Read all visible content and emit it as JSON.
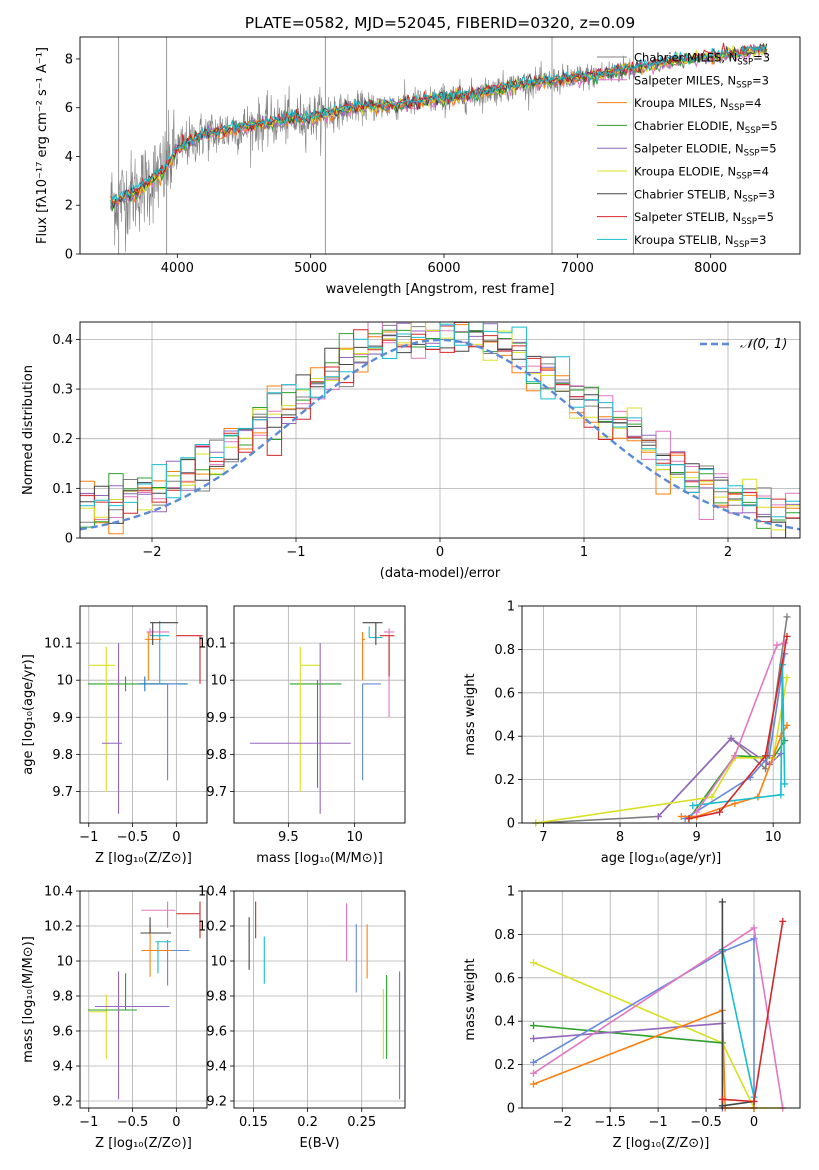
{
  "figure": {
    "title": "PLATE=0582, MJD=52045, FIBERID=0320, z=0.09"
  },
  "model_colors": [
    "#7f7f7f",
    "#e377c2",
    "#ff7f0e",
    "#2ca02c",
    "#9467bd",
    "#d9e021",
    "#444444",
    "#d62728",
    "#17becf"
  ],
  "chart_data": [
    {
      "id": "spectrum",
      "type": "line",
      "xlabel": "wavelength [Angstrom, rest frame]",
      "ylabel": "Flux [fλ10⁻¹⁷ erg cm⁻² s⁻¹ A⁻¹]",
      "xlim": [
        3270,
        8670
      ],
      "ylim": [
        0,
        8.9
      ],
      "xticks": [
        4000,
        5000,
        6000,
        7000,
        8000
      ],
      "yticks": [
        0,
        2,
        4,
        6,
        8
      ],
      "legend_position": "top-right",
      "series": [
        {
          "name": "Chabrier MILES, N",
          "sub": "SSP",
          "n": "=3",
          "color": "#7f7f7f"
        },
        {
          "name": "Salpeter MILES, N",
          "sub": "SSP",
          "n": "=3",
          "color": "#e377c2"
        },
        {
          "name": "Kroupa MILES, N",
          "sub": "SSP",
          "n": "=4",
          "color": "#ff7f0e"
        },
        {
          "name": "Chabrier ELODIE, N",
          "sub": "SSP",
          "n": "=5",
          "color": "#2ca02c"
        },
        {
          "name": "Salpeter ELODIE, N",
          "sub": "SSP",
          "n": "=5",
          "color": "#9467bd"
        },
        {
          "name": "Kroupa ELODIE, N",
          "sub": "SSP",
          "n": "=4",
          "color": "#d9e021"
        },
        {
          "name": "Chabrier STELIB, N",
          "sub": "SSP",
          "n": "=3",
          "color": "#444444"
        },
        {
          "name": "Salpeter STELIB, N",
          "sub": "SSP",
          "n": "=5",
          "color": "#d62728"
        },
        {
          "name": "Kroupa STELIB, N",
          "sub": "SSP",
          "n": "=3",
          "color": "#17becf"
        }
      ],
      "continuum": {
        "x": [
          3500,
          3700,
          3900,
          4000,
          4200,
          4500,
          4800,
          5000,
          5300,
          5600,
          5900,
          6200,
          6500,
          6800,
          7100,
          7400,
          7700,
          8000,
          8300,
          8430
        ],
        "y": [
          2.1,
          2.6,
          3.4,
          4.3,
          4.9,
          5.2,
          5.5,
          5.6,
          6.0,
          6.1,
          6.3,
          6.5,
          6.9,
          7.1,
          7.3,
          7.6,
          7.9,
          8.1,
          8.3,
          8.4
        ]
      },
      "data_spectrum": {
        "x_range": [
          3500,
          7400
        ],
        "spikes_at": [
          3560,
          3920,
          5110,
          6810,
          7420
        ]
      }
    },
    {
      "id": "residuals",
      "type": "line",
      "xlabel": "(data-model)/error",
      "ylabel": "Normed distribution",
      "xlim": [
        -2.5,
        2.5
      ],
      "ylim": [
        0,
        0.435
      ],
      "xticks": [
        -2,
        -1,
        0,
        1,
        2
      ],
      "yticks": [
        0.0,
        0.1,
        0.2,
        0.3,
        0.4
      ],
      "legend_position": "top-right",
      "reference": {
        "name": "𝒩(0, 1)",
        "mu": 0,
        "sigma": 1,
        "color": "#5b8bd6"
      },
      "bins": 50
    },
    {
      "id": "z-age",
      "type": "scatter",
      "xlabel": "Z [log₁₀(Z/Z⊙)]",
      "ylabel": "age  [log₁₀(age/yr)]",
      "xlim": [
        -1.1,
        0.35
      ],
      "ylim": [
        9.615,
        10.2
      ],
      "xticks": [
        -1.0,
        -0.5,
        0.0
      ],
      "yticks": [
        9.7,
        9.8,
        9.9,
        10.0,
        10.1
      ],
      "points": [
        {
          "x": -0.58,
          "xerr": [
            0.43,
            0.51
          ],
          "y": 9.99,
          "yerr": [
            0.02,
            0.02
          ],
          "color": "#2ca02c"
        },
        {
          "x": -0.8,
          "xerr": [
            0.2,
            0.1
          ],
          "y": 10.04,
          "yerr": [
            0.34,
            0.05
          ],
          "color": "#d9e021"
        },
        {
          "x": -0.66,
          "xerr": [
            0.19,
            0.04
          ],
          "y": 9.83,
          "yerr": [
            0.19,
            0.27
          ],
          "color": "#9467bd"
        },
        {
          "x": -0.36,
          "xerr": [
            0.07,
            0.49
          ],
          "y": 9.99,
          "yerr": [
            0.02,
            0.02
          ],
          "color": "#1f77b4"
        },
        {
          "x": -0.1,
          "xerr": [
            0.01,
            0.12
          ],
          "y": 9.99,
          "yerr": [
            0.26,
            0.0
          ],
          "color": "#6688dd"
        },
        {
          "x": -0.32,
          "xerr": [
            0.04,
            0.15
          ],
          "y": 10.11,
          "yerr": [
            0.11,
            0.02
          ],
          "color": "#ff7f0e"
        },
        {
          "x": -0.19,
          "xerr": [
            0.11,
            0.11
          ],
          "y": 10.12,
          "yerr": [
            0.13,
            0.04
          ],
          "color": "#17becf"
        },
        {
          "x": -0.3,
          "xerr": [
            0.04,
            0.22
          ],
          "y": 10.13,
          "yerr": [
            0.01,
            0.01
          ],
          "color": "#e377c2"
        },
        {
          "x": -0.27,
          "xerr": [
            0.03,
            0.29
          ],
          "y": 10.155,
          "yerr": [
            0.06,
            0.0
          ],
          "color": "#444444"
        },
        {
          "x": 0.27,
          "xerr": [
            0.27,
            0.03
          ],
          "y": 10.12,
          "yerr": [
            0.13,
            0.0
          ],
          "color": "#d62728"
        }
      ]
    },
    {
      "id": "mass-age",
      "type": "scatter",
      "xlabel": "mass [log₁₀(M/M⊙)]",
      "ylabel": "",
      "xlim": [
        9.09,
        10.38
      ],
      "ylim": [
        9.615,
        10.2
      ],
      "xticks": [
        9.5,
        10.0
      ],
      "yticks": [
        9.7,
        9.8,
        9.9,
        10.0,
        10.1
      ],
      "points": [
        {
          "x": 9.72,
          "xerr": [
            0.21,
            0.18
          ],
          "y": 9.99,
          "yerr": [
            0.28,
            0.01
          ],
          "color": "#2ca02c"
        },
        {
          "x": 9.59,
          "xerr": [
            0.0,
            0.15
          ],
          "y": 10.04,
          "yerr": [
            0.34,
            0.05
          ],
          "color": "#d9e021"
        },
        {
          "x": 9.74,
          "xerr": [
            0.53,
            0.23
          ],
          "y": 9.83,
          "yerr": [
            0.19,
            0.27
          ],
          "color": "#9467bd"
        },
        {
          "x": 10.06,
          "xerr": [
            0.0,
            0.14
          ],
          "y": 9.99,
          "yerr": [
            0.26,
            0.0
          ],
          "color": "#6688dd"
        },
        {
          "x": 10.06,
          "xerr": [
            0.0,
            0.02
          ],
          "y": 10.11,
          "yerr": [
            0.11,
            0.02
          ],
          "color": "#ff7f0e"
        },
        {
          "x": 10.11,
          "xerr": [
            0.0,
            0.1
          ],
          "y": 10.115,
          "yerr": [
            0.0,
            0.03
          ],
          "color": "#17becf"
        },
        {
          "x": 10.26,
          "xerr": [
            0.04,
            0.04
          ],
          "y": 10.13,
          "yerr": [
            0.23,
            0.01
          ],
          "color": "#e377c2"
        },
        {
          "x": 10.16,
          "xerr": [
            0.1,
            0.05
          ],
          "y": 10.155,
          "yerr": [
            0.06,
            0.0
          ],
          "color": "#444444"
        },
        {
          "x": 10.26,
          "xerr": [
            0.07,
            0.04
          ],
          "y": 10.12,
          "yerr": [
            0.11,
            0.0
          ],
          "color": "#d62728"
        }
      ]
    },
    {
      "id": "age-weight",
      "type": "line",
      "xlabel": "age  [log₁₀(age/yr)]",
      "ylabel": "mass weight",
      "xlim": [
        6.72,
        10.35
      ],
      "ylim": [
        0,
        1.0
      ],
      "xticks": [
        7,
        8,
        9,
        10
      ],
      "yticks": [
        0.0,
        0.2,
        0.4,
        0.6,
        0.8,
        1.0
      ],
      "series": [
        {
          "color": "#7f7f7f",
          "x": [
            6.9,
            8.5,
            9.45,
            9.9,
            10.18
          ],
          "y": [
            0.0,
            0.03,
            0.39,
            0.25,
            0.95
          ]
        },
        {
          "color": "#2ca02c",
          "x": [
            8.9,
            9.5,
            10.0,
            10.15
          ],
          "y": [
            0.02,
            0.31,
            0.3,
            0.38
          ]
        },
        {
          "color": "#9467bd",
          "x": [
            8.5,
            9.45,
            9.95,
            10.1
          ],
          "y": [
            0.03,
            0.39,
            0.27,
            0.32
          ]
        },
        {
          "color": "#d9e021",
          "x": [
            6.9,
            9.2,
            9.5,
            10.0,
            10.18
          ],
          "y": [
            0.0,
            0.12,
            0.3,
            0.3,
            0.67
          ]
        },
        {
          "color": "#6688dd",
          "x": [
            8.85,
            9.7,
            9.95,
            10.15
          ],
          "y": [
            0.02,
            0.21,
            0.31,
            0.78
          ]
        },
        {
          "color": "#ff7f0e",
          "x": [
            8.8,
            9.0,
            9.5,
            9.8,
            10.1,
            10.18
          ],
          "y": [
            0.03,
            0.03,
            0.09,
            0.12,
            0.4,
            0.45
          ]
        },
        {
          "color": "#17becf",
          "x": [
            8.95,
            10.1,
            10.12,
            10.15
          ],
          "y": [
            0.08,
            0.13,
            0.73,
            0.18
          ]
        },
        {
          "color": "#e377c2",
          "x": [
            9.0,
            9.5,
            10.05,
            10.15
          ],
          "y": [
            0.05,
            0.31,
            0.82,
            0.83
          ]
        },
        {
          "color": "#d62728",
          "x": [
            8.9,
            9.3,
            9.9,
            10.18
          ],
          "y": [
            0.02,
            0.05,
            0.31,
            0.86
          ]
        }
      ]
    },
    {
      "id": "z-mass",
      "type": "scatter",
      "xlabel": "Z [log₁₀(Z/Z⊙)]",
      "ylabel": "mass [log₁₀(M/M⊙)]",
      "xlim": [
        -1.1,
        0.35
      ],
      "ylim": [
        9.16,
        10.4
      ],
      "xticks": [
        -1.0,
        -0.5,
        0.0
      ],
      "yticks": [
        9.2,
        9.4,
        9.6,
        9.8,
        10.0,
        10.2,
        10.4
      ],
      "points": [
        {
          "x": -0.8,
          "xerr": [
            0.2,
            0.0
          ],
          "y": 9.71,
          "yerr": [
            0.27,
            0.1
          ],
          "color": "#d9e021"
        },
        {
          "x": -0.58,
          "xerr": [
            0.43,
            0.13
          ],
          "y": 9.72,
          "yerr": [
            0.0,
            0.21
          ],
          "color": "#2ca02c"
        },
        {
          "x": -0.66,
          "xerr": [
            0.27,
            0.58
          ],
          "y": 9.74,
          "yerr": [
            0.53,
            0.2
          ],
          "color": "#9467bd"
        },
        {
          "x": -0.1,
          "xerr": [
            0.26,
            0.25
          ],
          "y": 10.06,
          "yerr": [
            0.2,
            0.06
          ],
          "color": "#6688dd"
        },
        {
          "x": -0.3,
          "xerr": [
            0.1,
            0.24
          ],
          "y": 10.06,
          "yerr": [
            0.15,
            0.15
          ],
          "color": "#ff7f0e"
        },
        {
          "x": -0.21,
          "xerr": [
            0.03,
            0.15
          ],
          "y": 10.11,
          "yerr": [
            0.18,
            0.0
          ],
          "color": "#17becf"
        },
        {
          "x": -0.3,
          "xerr": [
            0.11,
            0.24
          ],
          "y": 10.16,
          "yerr": [
            0.0,
            0.09
          ],
          "color": "#444444"
        },
        {
          "x": -0.1,
          "xerr": [
            0.3,
            0.09
          ],
          "y": 10.29,
          "yerr": [
            0.1,
            0.05
          ],
          "color": "#e377c2"
        },
        {
          "x": 0.27,
          "xerr": [
            0.27,
            0.0
          ],
          "y": 10.27,
          "yerr": [
            0.14,
            0.07
          ],
          "color": "#d62728"
        }
      ]
    },
    {
      "id": "ebv-mass",
      "type": "scatter",
      "xlabel": "E(B-V)",
      "ylabel": "",
      "xlim": [
        0.132,
        0.29
      ],
      "ylim": [
        9.16,
        10.4
      ],
      "xticks": [
        0.15,
        0.2,
        0.25
      ],
      "yticks": [
        9.2,
        9.4,
        9.6,
        9.8,
        10.0,
        10.2,
        10.4
      ],
      "points": [
        {
          "x": 0.146,
          "y": 10.1,
          "yerr": [
            0.15,
            0.15
          ],
          "color": "#444444"
        },
        {
          "x": 0.152,
          "y": 10.22,
          "yerr": [
            0.09,
            0.12
          ],
          "color": "#d62728"
        },
        {
          "x": 0.16,
          "y": 10.04,
          "yerr": [
            0.17,
            0.1
          ],
          "color": "#17becf"
        },
        {
          "x": 0.236,
          "y": 10.2,
          "yerr": [
            0.2,
            0.13
          ],
          "color": "#e377c2"
        },
        {
          "x": 0.245,
          "y": 10.02,
          "yerr": [
            0.2,
            0.19
          ],
          "color": "#6688dd"
        },
        {
          "x": 0.255,
          "y": 10.06,
          "yerr": [
            0.16,
            0.15
          ],
          "color": "#ff7f0e"
        },
        {
          "x": 0.27,
          "y": 9.6,
          "yerr": [
            0.16,
            0.24
          ],
          "color": "#d9e021"
        },
        {
          "x": 0.273,
          "y": 9.72,
          "yerr": [
            0.28,
            0.2
          ],
          "color": "#2ca02c"
        },
        {
          "x": 0.285,
          "y": 9.57,
          "yerr": [
            0.36,
            0.37
          ],
          "color": "#9467bd"
        }
      ]
    },
    {
      "id": "z-weight",
      "type": "line",
      "xlabel": "Z [log₁₀(Z/Z⊙)]",
      "ylabel": "mass weight",
      "xlim": [
        -2.42,
        0.48
      ],
      "ylim": [
        0,
        1.0
      ],
      "xticks": [
        -2.0,
        -1.5,
        -1.0,
        -0.5,
        0.0
      ],
      "yticks": [
        0.0,
        0.2,
        0.4,
        0.6,
        0.8,
        1.0
      ],
      "series": [
        {
          "color": "#d9e021",
          "x": [
            -2.3,
            -0.33,
            0.0,
            0.3
          ],
          "y": [
            0.67,
            0.3,
            0.0,
            0.0
          ]
        },
        {
          "color": "#2ca02c",
          "x": [
            -2.3,
            -0.33
          ],
          "y": [
            0.38,
            0.3
          ]
        },
        {
          "color": "#9467bd",
          "x": [
            -2.3,
            -0.33,
            -0.33
          ],
          "y": [
            0.32,
            0.39,
            0.0
          ]
        },
        {
          "color": "#6688dd",
          "x": [
            -2.3,
            -0.33,
            0.0,
            0.0
          ],
          "y": [
            0.21,
            0.72,
            0.78,
            0.0
          ]
        },
        {
          "color": "#e377c2",
          "x": [
            -2.3,
            0.0,
            0.3
          ],
          "y": [
            0.16,
            0.83,
            0.0
          ]
        },
        {
          "color": "#ff7f0e",
          "x": [
            -2.3,
            -0.33,
            -0.3,
            0.0
          ],
          "y": [
            0.11,
            0.45,
            0.0,
            0.0
          ]
        },
        {
          "color": "#17becf",
          "x": [
            -0.33,
            0.0
          ],
          "y": [
            0.73,
            0.05
          ]
        },
        {
          "color": "#444444",
          "x": [
            -0.33,
            -0.33,
            0.0
          ],
          "y": [
            0.95,
            0.01,
            0.03
          ]
        },
        {
          "color": "#d62728",
          "x": [
            -0.33,
            0.0,
            0.3
          ],
          "y": [
            0.04,
            0.03,
            0.86
          ]
        }
      ]
    }
  ]
}
